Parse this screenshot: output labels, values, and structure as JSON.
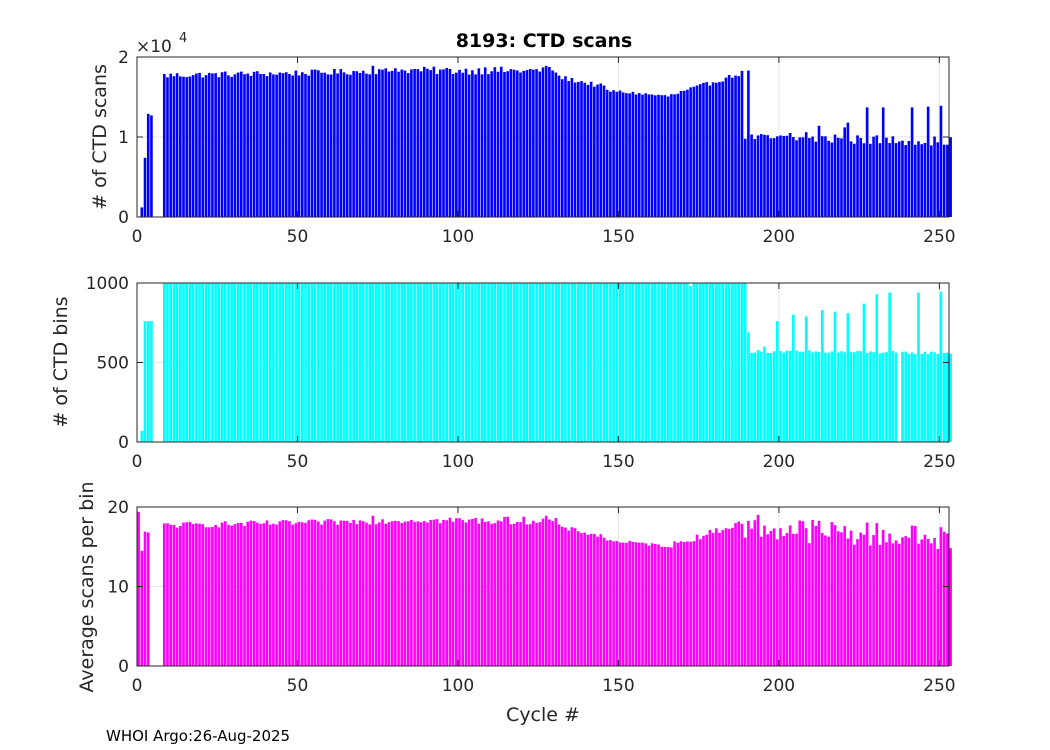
{
  "chart_data": [
    {
      "type": "bar",
      "title": "8193: CTD scans",
      "ylabel": "# of CTD scans",
      "xlabel": "",
      "exponent_label": "×10",
      "exponent_power": "4",
      "color": "#0000ff",
      "xlim": [
        0,
        253
      ],
      "ylim": [
        0,
        2
      ],
      "xticks": [
        "0",
        "50",
        "100",
        "150",
        "200",
        "250"
      ],
      "xtick_values": [
        0,
        50,
        100,
        150,
        200,
        250
      ],
      "yticks": [
        "0",
        "1",
        "2"
      ],
      "ytick_values": [
        0,
        1,
        2
      ],
      "grid": true,
      "segments": [
        {
          "range": [
            1,
            1
          ],
          "value": 0.12
        },
        {
          "range": [
            2,
            2
          ],
          "value": 0.74
        },
        {
          "range": [
            3,
            3
          ],
          "value": 1.29
        },
        {
          "range": [
            4,
            4
          ],
          "value": 1.27
        },
        {
          "range": [
            8,
            50
          ],
          "from": 1.77,
          "to": 1.8,
          "jitter": 0.04
        },
        {
          "range": [
            51,
            90
          ],
          "from": 1.8,
          "to": 1.84,
          "jitter": 0.04
        },
        {
          "range": [
            91,
            130
          ],
          "from": 1.83,
          "to": 1.83,
          "jitter": 0.05
        },
        {
          "range": [
            131,
            145
          ],
          "from": 1.75,
          "to": 1.63,
          "jitter": 0.03
        },
        {
          "range": [
            146,
            165
          ],
          "from": 1.58,
          "to": 1.51,
          "jitter": 0.02
        },
        {
          "range": [
            166,
            188
          ],
          "from": 1.52,
          "to": 1.8,
          "jitter": 0.03
        },
        {
          "range": [
            189,
            253
          ],
          "from": 0.99,
          "to": 0.95,
          "jitter": 0.06
        }
      ],
      "points": [
        [
          73,
          1.89
        ],
        [
          80,
          1.86
        ],
        [
          108,
          1.87
        ],
        [
          127,
          1.89
        ],
        [
          190,
          1.83
        ],
        [
          203,
          1.05
        ],
        [
          208,
          1.06
        ],
        [
          212,
          1.14
        ],
        [
          217,
          1.03
        ],
        [
          220,
          1.12
        ],
        [
          221,
          1.18
        ],
        [
          227,
          1.37
        ],
        [
          232,
          1.37
        ],
        [
          241,
          1.37
        ],
        [
          246,
          1.38
        ],
        [
          250,
          1.39
        ]
      ],
      "gaps": [
        0,
        5,
        6,
        7
      ]
    },
    {
      "type": "bar",
      "title": "",
      "ylabel": "# of CTD bins",
      "xlabel": "",
      "color": "#00ffff",
      "xlim": [
        0,
        253
      ],
      "ylim": [
        0,
        1000
      ],
      "xticks": [
        "0",
        "50",
        "100",
        "150",
        "200",
        "250"
      ],
      "xtick_values": [
        0,
        50,
        100,
        150,
        200,
        250
      ],
      "yticks": [
        "0",
        "500",
        "1000"
      ],
      "ytick_values": [
        0,
        500,
        1000
      ],
      "grid": true,
      "segments": [
        {
          "range": [
            1,
            1
          ],
          "value": 70
        },
        {
          "range": [
            2,
            2
          ],
          "value": 760
        },
        {
          "range": [
            3,
            3
          ],
          "value": 760
        },
        {
          "range": [
            4,
            4
          ],
          "value": 760
        },
        {
          "range": [
            8,
            189
          ],
          "from": 1000,
          "to": 1000,
          "jitter": 0
        },
        {
          "range": [
            190,
            253
          ],
          "from": 570,
          "to": 560,
          "jitter": 10
        }
      ],
      "points": [
        [
          172,
          980
        ],
        [
          190,
          690
        ],
        [
          195,
          600
        ],
        [
          199,
          760
        ],
        [
          204,
          800
        ],
        [
          208,
          790
        ],
        [
          213,
          830
        ],
        [
          217,
          820
        ],
        [
          221,
          810
        ],
        [
          226,
          870
        ],
        [
          230,
          930
        ],
        [
          234,
          940
        ],
        [
          243,
          940
        ],
        [
          250,
          945
        ]
      ],
      "gaps": [
        0,
        5,
        6,
        7,
        237
      ]
    },
    {
      "type": "bar",
      "title": "",
      "ylabel": "Average scans per bin",
      "xlabel": "Cycle #",
      "color": "#ff00ff",
      "xlim": [
        0,
        253
      ],
      "ylim": [
        0,
        20
      ],
      "xticks": [
        "0",
        "50",
        "100",
        "150",
        "200",
        "250"
      ],
      "xtick_values": [
        0,
        50,
        100,
        150,
        200,
        250
      ],
      "yticks": [
        "0",
        "10",
        "20"
      ],
      "ytick_values": [
        0,
        10,
        20
      ],
      "grid": true,
      "segments": [
        {
          "range": [
            0,
            0
          ],
          "value": 19.4
        },
        {
          "range": [
            1,
            1
          ],
          "value": 14.5
        },
        {
          "range": [
            2,
            2
          ],
          "value": 16.9
        },
        {
          "range": [
            3,
            3
          ],
          "value": 16.8
        },
        {
          "range": [
            8,
            50
          ],
          "from": 17.7,
          "to": 18.0,
          "jitter": 0.4
        },
        {
          "range": [
            51,
            90
          ],
          "from": 18.0,
          "to": 18.4,
          "jitter": 0.4
        },
        {
          "range": [
            91,
            130
          ],
          "from": 18.3,
          "to": 18.3,
          "jitter": 0.5
        },
        {
          "range": [
            131,
            145
          ],
          "from": 17.5,
          "to": 16.3,
          "jitter": 0.3
        },
        {
          "range": [
            146,
            165
          ],
          "from": 15.8,
          "to": 15.1,
          "jitter": 0.2
        },
        {
          "range": [
            166,
            188
          ],
          "from": 15.2,
          "to": 18.0,
          "jitter": 0.4
        },
        {
          "range": [
            189,
            253
          ],
          "from": 17.5,
          "to": 16.0,
          "jitter": 1.6
        }
      ],
      "points": [
        [
          73,
          18.9
        ],
        [
          127,
          18.9
        ],
        [
          193,
          19.0
        ]
      ],
      "gaps": [
        4,
        5,
        6,
        7
      ]
    }
  ],
  "footer": {
    "text": "WHOI Argo:26-Aug-2025"
  }
}
